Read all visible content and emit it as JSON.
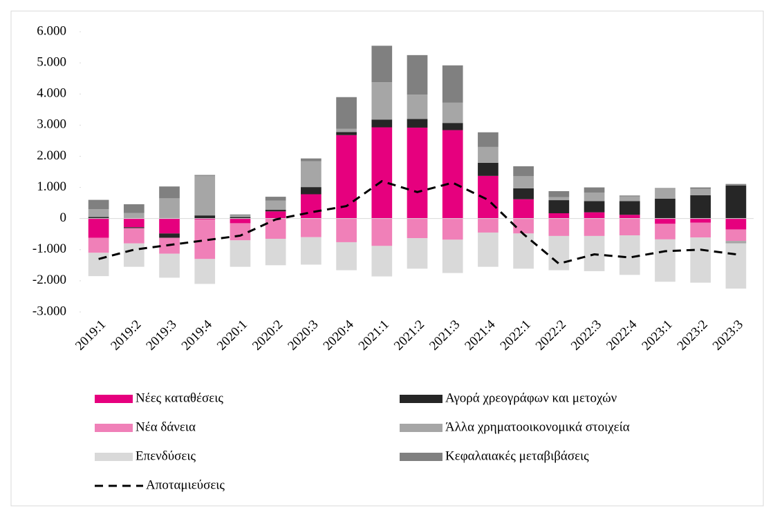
{
  "chart_data": {
    "type": "bar",
    "categories": [
      "2019:1",
      "2019:2",
      "2019:3",
      "2019:4",
      "2020:1",
      "2020:2",
      "2020:3",
      "2020:4",
      "2021:1",
      "2021:2",
      "2021:3",
      "2021:4",
      "2022:1",
      "2022:2",
      "2022:3",
      "2022:4",
      "2023:1",
      "2023:2",
      "2023:3"
    ],
    "stacked": true,
    "series": [
      {
        "name": "Νέες καταθέσεις",
        "color": "#e6007e",
        "values": [
          -620,
          -280,
          -480,
          -30,
          -150,
          230,
          780,
          2680,
          2930,
          2920,
          2840,
          1370,
          620,
          170,
          200,
          120,
          -170,
          -130,
          -350
        ]
      },
      {
        "name": "Νέα δάνεια",
        "color": "#f080b8",
        "values": [
          -480,
          -490,
          -510,
          -1270,
          -550,
          -650,
          -600,
          -760,
          -880,
          -630,
          -680,
          -450,
          -480,
          -560,
          -560,
          -540,
          -500,
          -480,
          -370
        ]
      },
      {
        "name": "Επενδύσεις",
        "color": "#d9d9d9",
        "values": [
          -750,
          -750,
          -770,
          -800,
          -850,
          -850,
          -880,
          -900,
          -980,
          -980,
          -1070,
          -1100,
          -1130,
          -1100,
          -1130,
          -1270,
          -1360,
          -1450,
          -1450
        ]
      },
      {
        "name": "Αγορά χρεογράφων και μετοχών",
        "color": "#262626",
        "values": [
          50,
          -30,
          -140,
          100,
          50,
          50,
          230,
          100,
          250,
          280,
          230,
          420,
          350,
          420,
          360,
          440,
          640,
          750,
          1060
        ]
      },
      {
        "name": "Άλλα χρηματοοικονομικά στοιχεία",
        "color": "#a6a6a6",
        "values": [
          250,
          180,
          650,
          1270,
          50,
          300,
          830,
          100,
          1200,
          780,
          650,
          510,
          390,
          100,
          270,
          150,
          320,
          200,
          -80
        ]
      },
      {
        "name": "Κεφαλαιακές μεταβιβάσεις",
        "color": "#808080",
        "values": [
          300,
          280,
          380,
          30,
          30,
          120,
          90,
          1020,
          1170,
          1270,
          1200,
          470,
          320,
          190,
          170,
          30,
          20,
          50,
          50
        ]
      },
      {
        "name": "Αποταμιεύσεις",
        "type": "line",
        "color": "#000000",
        "dashed": true,
        "values": [
          -1300,
          -1000,
          -850,
          -700,
          -550,
          -30,
          200,
          400,
          1200,
          850,
          1150,
          600,
          -500,
          -1450,
          -1150,
          -1250,
          -1050,
          -1000,
          -1150
        ]
      }
    ],
    "ylim": [
      -3000,
      6000
    ],
    "yticks": [
      {
        "value": -3000,
        "label": "-3.000"
      },
      {
        "value": -2000,
        "label": "-2.000"
      },
      {
        "value": -1000,
        "label": "-1.000"
      },
      0,
      {
        "value": 1000,
        "label": "1.000"
      },
      {
        "value": 2000,
        "label": "2.000"
      },
      {
        "value": 3000,
        "label": "3.000"
      },
      {
        "value": 4000,
        "label": "4.000"
      },
      {
        "value": 5000,
        "label": "5.000"
      },
      {
        "value": 6000,
        "label": "6.000"
      }
    ],
    "grid": false
  }
}
